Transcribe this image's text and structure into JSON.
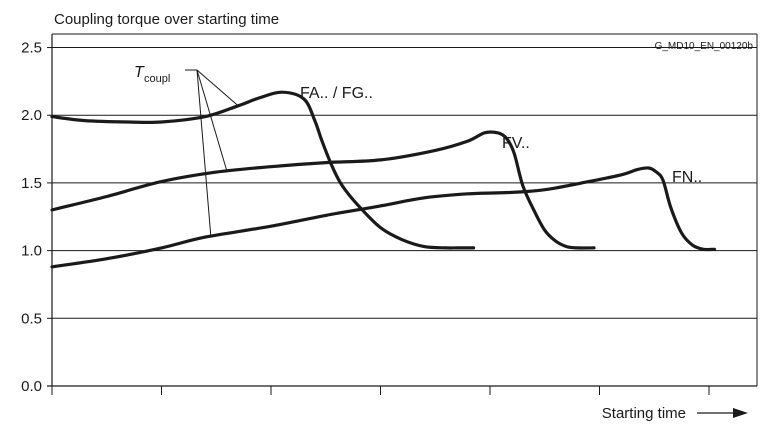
{
  "chart_data": {
    "type": "line",
    "title": "Coupling torque over starting time",
    "code": "G_MD10_EN_00120b",
    "xlabel": "Starting time",
    "ylabel": "",
    "ylim": [
      0,
      2.6
    ],
    "xlim": [
      0,
      6.3
    ],
    "yticks": [
      "0.0",
      "0.5",
      "1.0",
      "1.5",
      "2.0",
      "2.5"
    ],
    "ytick_values": [
      0,
      0.5,
      1.0,
      1.5,
      2.0,
      2.5
    ],
    "xtick_values": [
      0,
      1,
      2,
      3,
      4,
      5,
      6
    ],
    "grid": "horizontal",
    "annotation": {
      "main": "T",
      "sub": "coupl"
    },
    "series": [
      {
        "name": "FA.. / FG..",
        "x": [
          0,
          0.3,
          0.7,
          1.0,
          1.4,
          1.7,
          1.9,
          2.1,
          2.3,
          2.4,
          2.47,
          2.56,
          2.65,
          2.8,
          3.0,
          3.2,
          3.4,
          3.6,
          3.7,
          3.85
        ],
        "y": [
          1.99,
          1.96,
          1.95,
          1.95,
          1.99,
          2.07,
          2.13,
          2.17,
          2.12,
          1.96,
          1.8,
          1.62,
          1.48,
          1.33,
          1.17,
          1.08,
          1.03,
          1.02,
          1.02,
          1.02
        ]
      },
      {
        "name": "FV..",
        "x": [
          0,
          0.5,
          1.0,
          1.5,
          2.0,
          2.5,
          3.0,
          3.5,
          3.8,
          3.95,
          4.07,
          4.15,
          4.22,
          4.3,
          4.4,
          4.5,
          4.6,
          4.7,
          4.8,
          4.95
        ],
        "y": [
          1.3,
          1.4,
          1.51,
          1.58,
          1.62,
          1.65,
          1.67,
          1.74,
          1.81,
          1.87,
          1.87,
          1.83,
          1.72,
          1.48,
          1.3,
          1.15,
          1.07,
          1.03,
          1.02,
          1.02
        ]
      },
      {
        "name": "FN..",
        "x": [
          0,
          0.5,
          1.0,
          1.4,
          2.0,
          2.5,
          3.0,
          3.4,
          3.8,
          4.2,
          4.5,
          4.9,
          5.2,
          5.35,
          5.45,
          5.52,
          5.58,
          5.65,
          5.75,
          5.85,
          5.95,
          6.05
        ],
        "y": [
          0.88,
          0.94,
          1.02,
          1.1,
          1.18,
          1.26,
          1.33,
          1.39,
          1.42,
          1.43,
          1.45,
          1.51,
          1.56,
          1.6,
          1.61,
          1.58,
          1.52,
          1.32,
          1.13,
          1.04,
          1.01,
          1.01
        ]
      }
    ]
  }
}
